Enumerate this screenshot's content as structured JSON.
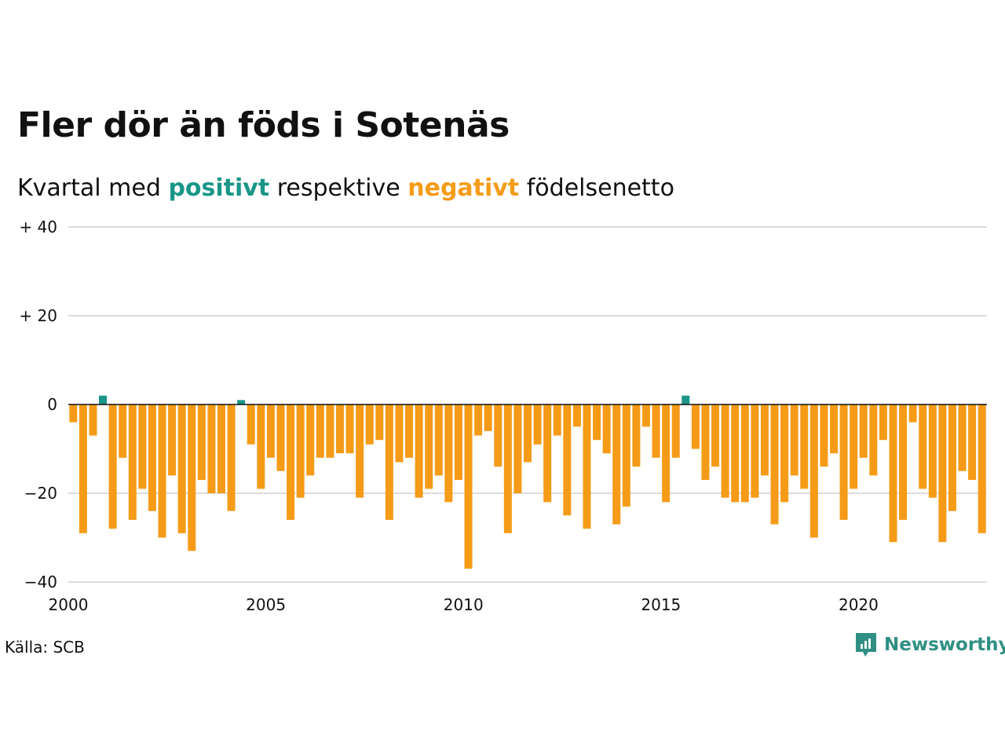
{
  "title": "Fler dör än föds i Sotenäs",
  "subtitle": {
    "prefix": "Kvartal med",
    "positive": "positivt",
    "middle": "respektive",
    "negative": "negativt",
    "suffix": "födelsenetto"
  },
  "source": "Källa: SCB",
  "brand": "Newsworthy",
  "colors": {
    "positive": "#1a9688",
    "negative": "#f59b17"
  },
  "chart_data": {
    "type": "bar",
    "title": "Fler dör än föds i Sotenäs",
    "xlabel": "",
    "ylabel": "",
    "ylim": [
      -40,
      40
    ],
    "xlim": [
      2000,
      2023.25
    ],
    "y_ticks": [
      {
        "v": 40,
        "label": "+ 40"
      },
      {
        "v": 20,
        "label": "+ 20"
      },
      {
        "v": 0,
        "label": "0"
      },
      {
        "v": -20,
        "label": "−20"
      },
      {
        "v": -40,
        "label": "−40"
      }
    ],
    "x_ticks": [
      {
        "v": 2000,
        "label": "2000"
      },
      {
        "v": 2005,
        "label": "2005"
      },
      {
        "v": 2010,
        "label": "2010"
      },
      {
        "v": 2015,
        "label": "2015"
      },
      {
        "v": 2020,
        "label": "2020"
      }
    ],
    "start": "2000 Q1",
    "frequency": "quarterly",
    "values": [
      -4,
      -29,
      -7,
      2,
      -28,
      -12,
      -26,
      -19,
      -24,
      -30,
      -16,
      -29,
      -33,
      -17,
      -20,
      -20,
      -24,
      1,
      -9,
      -19,
      -12,
      -15,
      -26,
      -21,
      -16,
      -12,
      -12,
      -11,
      -11,
      -21,
      -9,
      -8,
      -26,
      -13,
      -12,
      -21,
      -19,
      -16,
      -22,
      -17,
      -37,
      -7,
      -6,
      -14,
      -29,
      -20,
      -13,
      -9,
      -22,
      -7,
      -25,
      -5,
      -28,
      -8,
      -11,
      -27,
      -23,
      -14,
      -5,
      -12,
      -22,
      -12,
      2,
      -10,
      -17,
      -14,
      -21,
      -22,
      -22,
      -21,
      -16,
      -27,
      -22,
      -16,
      -19,
      -30,
      -14,
      -11,
      -26,
      -19,
      -12,
      -16,
      -8,
      -31,
      -26,
      -4,
      -19,
      -21,
      -31,
      -24,
      -15,
      -17,
      -29
    ],
    "grid": true
  }
}
